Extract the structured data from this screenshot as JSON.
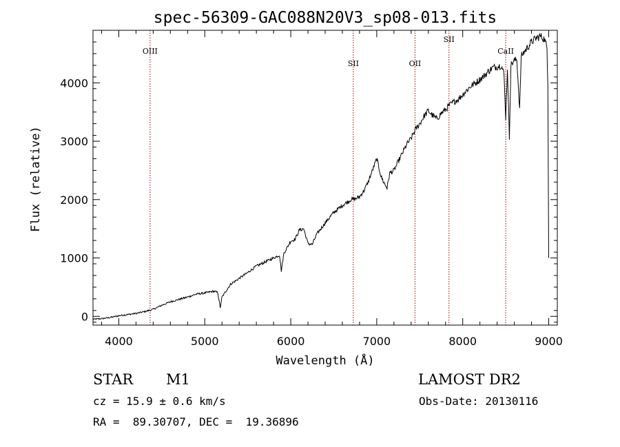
{
  "chart_data": {
    "type": "line",
    "title": "spec-56309-GAC088N20V3_sp08-013.fits",
    "xlabel": "Wavelength (Å)",
    "ylabel": "Flux (relative)",
    "xlim": [
      3700,
      9100
    ],
    "ylim": [
      -150,
      4900
    ],
    "xticks": [
      4000,
      5000,
      6000,
      7000,
      8000,
      9000
    ],
    "yticks": [
      0,
      1000,
      2000,
      3000,
      4000
    ],
    "grid": false,
    "series": [
      {
        "color": "#000000",
        "x": [
          3700,
          3800,
          3900,
          4000,
          4100,
          4200,
          4300,
          4400,
          4500,
          4600,
          4700,
          4800,
          4900,
          5000,
          5100,
          5150,
          5180,
          5200,
          5300,
          5400,
          5500,
          5600,
          5700,
          5800,
          5870,
          5890,
          5920,
          6000,
          6050,
          6100,
          6150,
          6200,
          6250,
          6300,
          6400,
          6500,
          6600,
          6700,
          6750,
          6800,
          6850,
          6900,
          6950,
          7000,
          7050,
          7080,
          7120,
          7150,
          7200,
          7250,
          7300,
          7350,
          7400,
          7450,
          7500,
          7550,
          7600,
          7650,
          7700,
          7750,
          7800,
          7850,
          7900,
          7950,
          8000,
          8050,
          8100,
          8150,
          8200,
          8250,
          8300,
          8350,
          8400,
          8450,
          8480,
          8500,
          8520,
          8542,
          8560,
          8580,
          8600,
          8630,
          8662,
          8680,
          8700,
          8750,
          8800,
          8850,
          8900,
          8950,
          8980,
          8990,
          9000
        ],
        "y": [
          -50,
          -40,
          -20,
          10,
          30,
          50,
          80,
          120,
          190,
          250,
          290,
          330,
          380,
          400,
          430,
          410,
          150,
          330,
          550,
          650,
          750,
          860,
          930,
          1000,
          1050,
          780,
          1080,
          1290,
          1320,
          1480,
          1500,
          1250,
          1230,
          1400,
          1600,
          1780,
          1900,
          2000,
          2010,
          2050,
          2150,
          2300,
          2500,
          2700,
          2400,
          2300,
          2200,
          2450,
          2500,
          2650,
          2800,
          2950,
          3050,
          3200,
          3300,
          3430,
          3520,
          3440,
          3380,
          3480,
          3540,
          3620,
          3680,
          3720,
          3800,
          3880,
          3950,
          4000,
          4060,
          4120,
          4200,
          4260,
          4280,
          4300,
          4150,
          3400,
          4250,
          3050,
          4300,
          4350,
          4380,
          4400,
          3550,
          4450,
          4500,
          4600,
          4700,
          4760,
          4800,
          4750,
          4600,
          4000,
          1000
        ]
      }
    ],
    "annotations": [
      "OIII",
      "SII",
      "OII",
      "SII",
      "CaII"
    ],
    "line_markers": [
      {
        "label": "OIII",
        "wavelength": 4364
      },
      {
        "label": "SII",
        "wavelength": 6727
      },
      {
        "label": "OII",
        "wavelength": 7445
      },
      {
        "label": "SII",
        "wavelength": 7840
      },
      {
        "label": "CaII",
        "wavelength": 8500
      }
    ],
    "marker_color": "#8b0000"
  },
  "info": {
    "object_class": "STAR",
    "subclass": "M1",
    "survey": "LAMOST DR2",
    "redshift_line": "cz = 15.9 ± 0.6 km/s",
    "coords_line": "RA =  89.30707, DEC =  19.36896",
    "obs_date_line": "Obs-Date: 20130116"
  }
}
